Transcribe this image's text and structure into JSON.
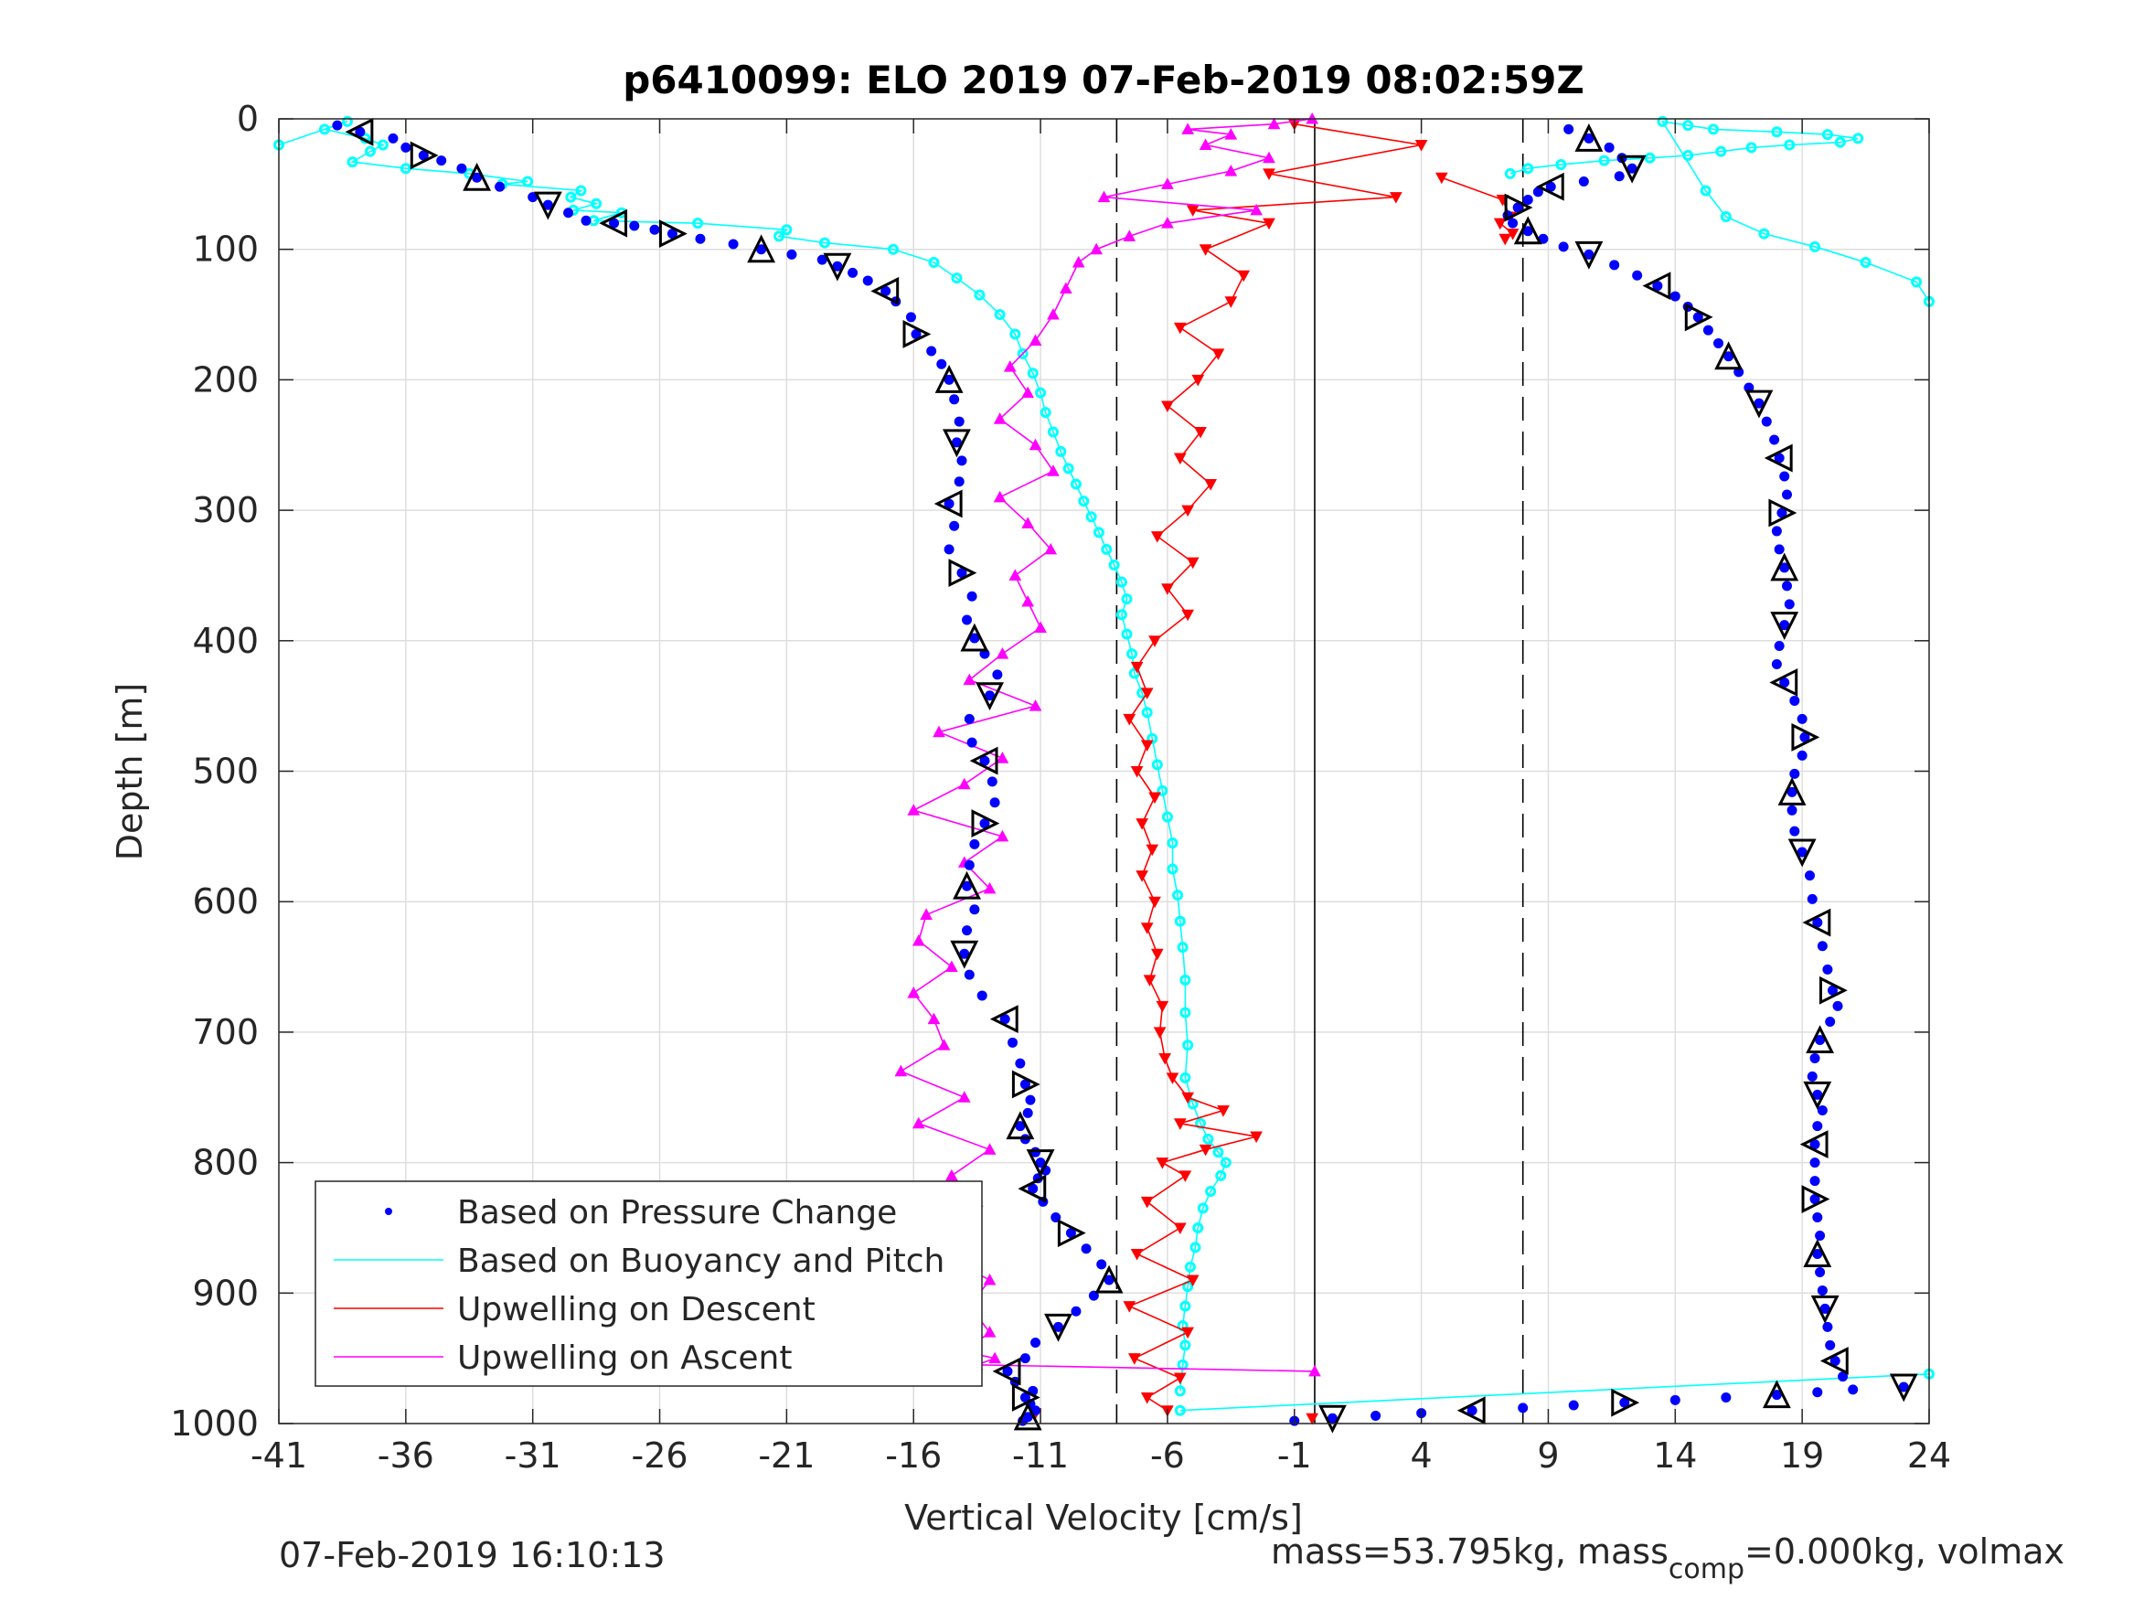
{
  "chart_data": {
    "type": "scatter",
    "title": "p6410099: ELO 2019 07-Feb-2019 08:02:59Z",
    "xlabel": "Vertical Velocity [cm/s]",
    "ylabel": "Depth [m]",
    "xlim": [
      -41,
      24
    ],
    "ylim": [
      0,
      1000
    ],
    "y_reversed": true,
    "xticks": [
      -41,
      -36,
      -31,
      -26,
      -21,
      -16,
      -11,
      -6,
      -1,
      4,
      9,
      14,
      19,
      24
    ],
    "yticks": [
      0,
      100,
      200,
      300,
      400,
      500,
      600,
      700,
      800,
      900,
      1000
    ],
    "grid": true,
    "legend_position": "bottom-left",
    "reference_lines": {
      "solid_x": [
        -0.2
      ],
      "dashed_x": [
        -8,
        8
      ]
    },
    "colors": {
      "pressure": "#0000ff",
      "buoyancy": "#00ffff",
      "descent": "#ff0000",
      "ascent": "#ff00ff",
      "markers": "#000000"
    },
    "series": [
      {
        "name": "Based on Pressure Change",
        "kind": "dots",
        "segments": [
          {
            "x": [
              -38.7,
              -37.8,
              -36.5,
              -36.0,
              -35.3,
              -34.6,
              -33.8,
              -33.2,
              -32.3,
              -31.0,
              -30.4,
              -29.6,
              -28.9,
              -27.8,
              -27.0,
              -26.2,
              -25.5,
              -24.4,
              -23.1,
              -22.0,
              -20.8,
              -19.6,
              -19.0,
              -18.4,
              -17.8,
              -17.1,
              -16.7,
              -16.1,
              -15.9,
              -15.3,
              -14.9,
              -14.6,
              -14.4,
              -14.2,
              -14.3,
              -14.1,
              -14.2,
              -14.6,
              -14.4,
              -14.6,
              -14.1,
              -13.7,
              -13.9,
              -13.6,
              -13.2,
              -12.7,
              -13.0,
              -13.8,
              -13.7,
              -13.2,
              -12.9,
              -12.8,
              -13.2,
              -13.6,
              -13.8,
              -13.9,
              -13.6,
              -13.9,
              -14.0,
              -13.8,
              -13.3,
              -12.4,
              -12.1,
              -11.8,
              -11.6,
              -11.4,
              -11.5,
              -11.8,
              -11.6,
              -11.2,
              -11.0,
              -10.8,
              -11.1,
              -11.3,
              -10.9,
              -10.4,
              -9.8,
              -9.2,
              -8.6,
              -8.3,
              -8.9,
              -9.6,
              -10.3,
              -11.2,
              -11.6,
              -12.3,
              -12.0,
              -11.3,
              -11.6,
              -11.4,
              -11.2,
              -11.5,
              -11.7
            ],
            "y": [
              5,
              10,
              15,
              22,
              28,
              32,
              38,
              45,
              52,
              60,
              66,
              72,
              78,
              80,
              82,
              85,
              88,
              92,
              96,
              100,
              104,
              108,
              113,
              118,
              124,
              132,
              140,
              152,
              165,
              178,
              188,
              200,
              215,
              232,
              248,
              262,
              278,
              295,
              312,
              330,
              348,
              366,
              384,
              398,
              410,
              426,
              442,
              460,
              478,
              492,
              508,
              524,
              540,
              556,
              572,
              588,
              606,
              622,
              640,
              656,
              672,
              690,
              708,
              724,
              740,
              752,
              762,
              772,
              782,
              792,
              800,
              806,
              812,
              820,
              830,
              842,
              854,
              866,
              878,
              890,
              902,
              914,
              926,
              938,
              950,
              960,
              968,
              975,
              980,
              985,
              990,
              995,
              998
            ]
          },
          {
            "x": [
              -1.0,
              0.5,
              2.2,
              4.0,
              6.0,
              8.0,
              10.0,
              12.0,
              14.0,
              16.0,
              18.0,
              19.6,
              21.0,
              23.0
            ],
            "y": [
              998,
              996,
              994,
              992,
              990,
              988,
              986,
              984,
              982,
              980,
              978,
              976,
              974,
              972
            ]
          },
          {
            "x": [
              9.8,
              10.6,
              11.4,
              11.9,
              12.3,
              11.8,
              10.4,
              9.1,
              8.6,
              8.2,
              7.8,
              7.4,
              7.6,
              8.2,
              8.8,
              9.6,
              10.6,
              11.6,
              12.5,
              13.3,
              14.0,
              14.5,
              14.9,
              15.3,
              15.7,
              16.1,
              16.5,
              16.9,
              17.3,
              17.6,
              17.9,
              18.1,
              18.3,
              18.4,
              18.2,
              18.0,
              18.1,
              18.3,
              18.4,
              18.5,
              18.3,
              18.1,
              18.0,
              18.3,
              18.7,
              19.0,
              19.1,
              19.0,
              18.7,
              18.6,
              18.6,
              18.7,
              19.0,
              19.3,
              19.4,
              19.6,
              19.8,
              20.0,
              20.2,
              20.4,
              20.1,
              19.7,
              19.5,
              19.4,
              19.6,
              19.8,
              19.6,
              19.5,
              19.5,
              19.5,
              19.5,
              19.6,
              19.7,
              19.6,
              19.7,
              19.8,
              19.9,
              20.0,
              20.1,
              20.3,
              20.6
            ],
            "y": [
              8,
              15,
              22,
              30,
              38,
              44,
              48,
              52,
              56,
              62,
              68,
              74,
              80,
              86,
              92,
              98,
              104,
              112,
              120,
              128,
              136,
              144,
              152,
              162,
              172,
              182,
              194,
              206,
              218,
              232,
              246,
              260,
              274,
              288,
              302,
              316,
              330,
              344,
              358,
              372,
              388,
              404,
              418,
              432,
              446,
              460,
              474,
              488,
              502,
              516,
              530,
              546,
              562,
              580,
              598,
              616,
              634,
              652,
              668,
              680,
              692,
              706,
              720,
              734,
              748,
              760,
              772,
              786,
              800,
              814,
              828,
              842,
              856,
              870,
              884,
              898,
              912,
              926,
              940,
              952,
              964
            ]
          }
        ]
      },
      {
        "name": "Based on Buoyancy and Pitch",
        "kind": "line+markers",
        "segments": [
          {
            "x": [
              -41.0,
              -38.3,
              -39.2,
              -37.6,
              -36.9,
              -37.4,
              -38.1,
              -36.0,
              -33.5,
              -31.2,
              -32.2,
              -29.1,
              -29.5,
              -28.5,
              -29.4,
              -27.5,
              -28.6,
              -24.5,
              -21.0,
              -21.3,
              -19.5,
              -16.8,
              -15.2,
              -14.3,
              -13.4,
              -12.6,
              -12.0,
              -11.7,
              -11.3,
              -11.0,
              -10.8,
              -10.5,
              -10.2,
              -9.9,
              -9.6,
              -9.3,
              -9.0,
              -8.7,
              -8.4,
              -8.1,
              -7.8,
              -7.6,
              -7.8,
              -7.6,
              -7.4,
              -7.3,
              -7.0,
              -6.8,
              -6.6,
              -6.4,
              -6.2,
              -6.0,
              -5.8,
              -5.8,
              -5.6,
              -5.5,
              -5.4,
              -5.3,
              -5.3,
              -5.2,
              -5.3,
              -5.0,
              -4.7,
              -4.4,
              -4.0,
              -3.7,
              -3.9,
              -4.3,
              -4.6,
              -4.8,
              -4.9,
              -5.1,
              -5.2,
              -5.3,
              -5.4,
              -5.3,
              -5.4,
              -5.5
            ],
            "y": [
              20,
              2,
              8,
              15,
              20,
              25,
              33,
              38,
              42,
              48,
              50,
              55,
              60,
              65,
              70,
              72,
              78,
              80,
              85,
              90,
              95,
              100,
              110,
              122,
              135,
              150,
              165,
              180,
              195,
              210,
              225,
              240,
              255,
              268,
              280,
              293,
              305,
              317,
              330,
              342,
              355,
              368,
              380,
              395,
              410,
              425,
              440,
              455,
              475,
              495,
              515,
              535,
              555,
              575,
              595,
              615,
              635,
              660,
              685,
              710,
              735,
              755,
              770,
              782,
              792,
              800,
              810,
              822,
              835,
              850,
              865,
              880,
              895,
              910,
              925,
              940,
              955,
              975
            ]
          },
          {
            "x": [
              -5.5,
              24.0
            ],
            "y": [
              990,
              962
            ]
          },
          {
            "x": [
              7.5,
              8.2,
              9.5,
              11.2,
              13.0,
              14.5,
              15.8,
              17.0,
              18.5,
              20.5,
              21.2,
              20.0,
              18.0,
              15.5,
              14.5,
              13.5,
              15.2,
              16.0,
              17.5,
              19.5,
              21.5,
              23.5,
              24.0
            ],
            "y": [
              42,
              38,
              35,
              32,
              30,
              28,
              25,
              22,
              20,
              18,
              15,
              12,
              10,
              8,
              5,
              2,
              55,
              75,
              88,
              98,
              110,
              125,
              140
            ]
          }
        ]
      },
      {
        "name": "Upwelling on Descent",
        "kind": "line+markers",
        "segments": [
          {
            "x": [
              -1.0,
              4.0,
              -2.0,
              3.0,
              -5.0,
              -2.0,
              -4.5,
              -3.0,
              -3.5,
              -5.5,
              -4.0,
              -4.8,
              -6.0,
              -4.7,
              -5.5,
              -4.3,
              -5.2,
              -6.4,
              -5.0,
              -6.0,
              -5.2,
              -6.5,
              -7.2,
              -6.8,
              -7.5,
              -6.8,
              -7.2,
              -6.5,
              -7.0,
              -6.6,
              -7.0,
              -6.5,
              -6.8,
              -6.4,
              -6.7,
              -6.2,
              -6.3,
              -6.1,
              -5.8,
              -5.2,
              -3.8,
              -5.5,
              -2.5,
              -4.5,
              -6.2,
              -5.3,
              -6.8,
              -5.5,
              -7.2,
              -5.0,
              -7.5,
              -5.2,
              -7.3,
              -5.5,
              -6.8,
              -6.0
            ],
            "y": [
              4,
              20,
              42,
              60,
              70,
              80,
              100,
              120,
              140,
              160,
              180,
              200,
              220,
              240,
              260,
              280,
              300,
              320,
              340,
              360,
              380,
              400,
              420,
              440,
              460,
              480,
              500,
              520,
              540,
              560,
              580,
              600,
              620,
              640,
              660,
              680,
              700,
              720,
              735,
              750,
              760,
              770,
              780,
              790,
              800,
              810,
              830,
              850,
              870,
              890,
              910,
              930,
              950,
              965,
              980,
              990
            ]
          },
          {
            "x": [
              -11.2
            ],
            "y": [
              992
            ]
          },
          {
            "x": [
              -0.3
            ],
            "y": [
              996
            ]
          },
          {
            "x": [
              4.8,
              7.2,
              7.5,
              7.1,
              7.6,
              7.3
            ],
            "y": [
              45,
              62,
              75,
              80,
              88,
              92
            ]
          }
        ]
      },
      {
        "name": "Upwelling on Ascent",
        "kind": "line+markers",
        "segments": [
          {
            "x": [
              -0.3,
              -1.8,
              -5.2,
              -3.5,
              -4.5,
              -2.0,
              -3.5,
              -6.0,
              -8.5,
              -2.5,
              -6.0,
              -7.5,
              -8.8,
              -9.5,
              -10.0,
              -10.5,
              -11.2,
              -12.2,
              -11.5,
              -12.6,
              -11.2,
              -10.5,
              -12.6,
              -11.5,
              -10.6,
              -12.0,
              -11.5,
              -11.0,
              -12.5,
              -13.8,
              -11.2,
              -15.0,
              -12.5,
              -14.0,
              -16.0,
              -12.5,
              -14.0,
              -13.0,
              -15.5,
              -15.8,
              -14.5,
              -16.0,
              -15.2,
              -14.8,
              -16.5,
              -14.0,
              -15.8,
              -13.0,
              -14.5,
              -13.5,
              -14.2,
              -15.0,
              -13.0,
              -13.8,
              -13.0,
              -14.0,
              -12.8,
              -13.5,
              -0.2
            ],
            "y": [
              0,
              4,
              8,
              12,
              20,
              30,
              40,
              50,
              60,
              70,
              80,
              90,
              100,
              110,
              130,
              150,
              170,
              190,
              210,
              230,
              250,
              270,
              290,
              310,
              330,
              350,
              370,
              390,
              410,
              430,
              450,
              470,
              490,
              510,
              530,
              550,
              570,
              590,
              610,
              630,
              650,
              670,
              690,
              710,
              730,
              750,
              770,
              790,
              810,
              830,
              850,
              870,
              890,
              910,
              930,
              945,
              950,
              955,
              960
            ]
          }
        ]
      }
    ],
    "bottom_left_text": "07-Feb-2019 16:10:13",
    "bottom_right_text": {
      "t1": "mass=53.795kg, mass",
      "sub": "comp",
      "t2": "=0.000kg, volmax"
    }
  }
}
